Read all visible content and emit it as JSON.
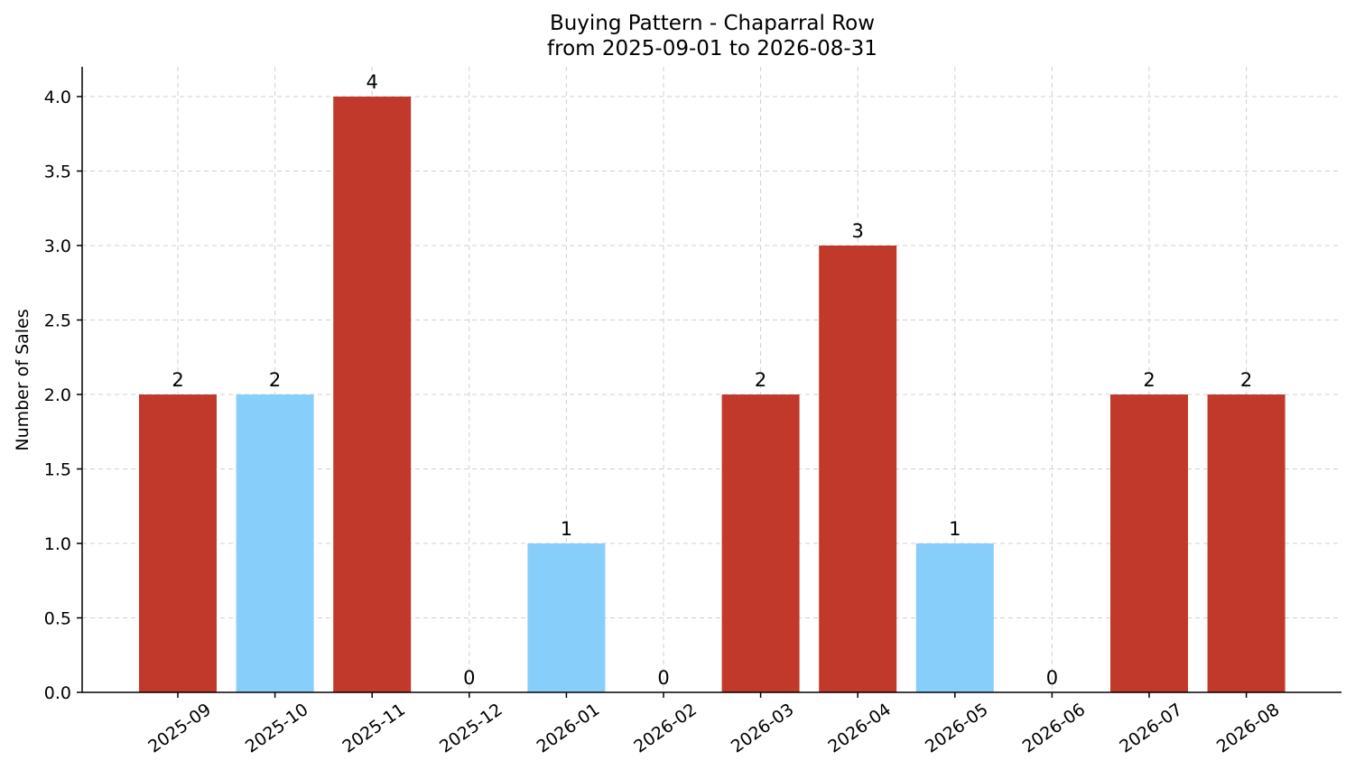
{
  "chart_data": {
    "type": "bar",
    "title": "Buying Pattern - Chaparral Row",
    "subtitle": "from 2025-09-01 to 2026-08-31",
    "xlabel": "",
    "ylabel": "Number of Sales",
    "categories": [
      "2025-09",
      "2025-10",
      "2025-11",
      "2025-12",
      "2026-01",
      "2026-02",
      "2026-03",
      "2026-04",
      "2026-05",
      "2026-06",
      "2026-07",
      "2026-08"
    ],
    "values": [
      2,
      2,
      4,
      0,
      1,
      0,
      2,
      3,
      1,
      0,
      2,
      2
    ],
    "bar_colors": [
      "#c0392b",
      "#87cefa",
      "#c0392b",
      "#c0392b",
      "#87cefa",
      "#c0392b",
      "#c0392b",
      "#c0392b",
      "#87cefa",
      "#c0392b",
      "#c0392b",
      "#c0392b"
    ],
    "ylim": [
      0,
      4.2
    ],
    "yticks": [
      "0.0",
      "0.5",
      "1.0",
      "1.5",
      "2.0",
      "2.5",
      "3.0",
      "3.5",
      "4.0"
    ],
    "grid": true,
    "data_labels": true
  }
}
